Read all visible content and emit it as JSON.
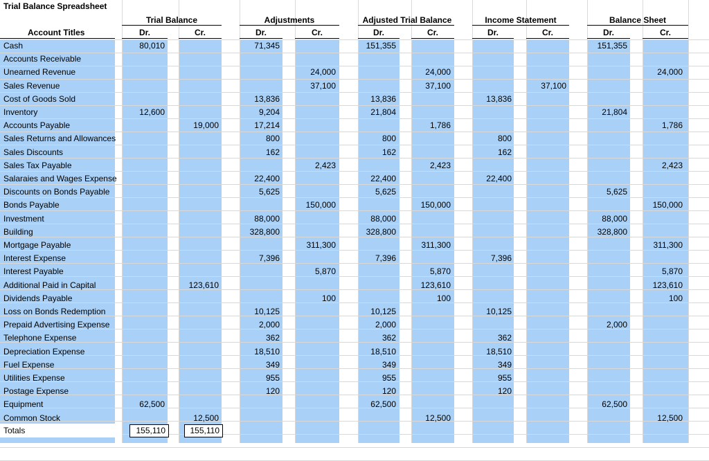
{
  "sheet": {
    "title": "Trial Balance Spreadsheet",
    "account_header": "Account Titles",
    "groups": [
      {
        "label": "Trial Balance",
        "dr": "Dr.",
        "cr": "Cr."
      },
      {
        "label": "Adjustments",
        "dr": "Dr.",
        "cr": "Cr."
      },
      {
        "label": "Adjusted Trial Balance",
        "dr": "Dr.",
        "cr": "Cr."
      },
      {
        "label": "Income Statement",
        "dr": "Dr.",
        "cr": "Cr."
      },
      {
        "label": "Balance Sheet",
        "dr": "Dr.",
        "cr": "Cr."
      }
    ],
    "rows": [
      {
        "account": "Cash",
        "tb_dr": "80,010",
        "tb_cr": "",
        "adj_dr": "71,345",
        "adj_cr": "",
        "atb_dr": "151,355",
        "atb_cr": "",
        "is_dr": "",
        "is_cr": "",
        "bs_dr": "151,355",
        "bs_cr": ""
      },
      {
        "account": "Accounts Receivable",
        "tb_dr": "",
        "tb_cr": "",
        "adj_dr": "",
        "adj_cr": "",
        "atb_dr": "",
        "atb_cr": "",
        "is_dr": "",
        "is_cr": "",
        "bs_dr": "",
        "bs_cr": ""
      },
      {
        "account": "Unearned Revenue",
        "tb_dr": "",
        "tb_cr": "",
        "adj_dr": "",
        "adj_cr": "24,000",
        "atb_dr": "",
        "atb_cr": "24,000",
        "is_dr": "",
        "is_cr": "",
        "bs_dr": "",
        "bs_cr": "24,000"
      },
      {
        "account": "Sales Revenue",
        "tb_dr": "",
        "tb_cr": "",
        "adj_dr": "",
        "adj_cr": "37,100",
        "atb_dr": "",
        "atb_cr": "37,100",
        "is_dr": "",
        "is_cr": "37,100",
        "bs_dr": "",
        "bs_cr": ""
      },
      {
        "account": "Cost of Goods Sold",
        "tb_dr": "",
        "tb_cr": "",
        "adj_dr": "13,836",
        "adj_cr": "",
        "atb_dr": "13,836",
        "atb_cr": "",
        "is_dr": "13,836",
        "is_cr": "",
        "bs_dr": "",
        "bs_cr": ""
      },
      {
        "account": "Inventory",
        "tb_dr": "12,600",
        "tb_cr": "",
        "adj_dr": "9,204",
        "adj_cr": "",
        "atb_dr": "21,804",
        "atb_cr": "",
        "is_dr": "",
        "is_cr": "",
        "bs_dr": "21,804",
        "bs_cr": ""
      },
      {
        "account": "Accounts Payable",
        "tb_dr": "",
        "tb_cr": "19,000",
        "adj_dr": "17,214",
        "adj_cr": "",
        "atb_dr": "",
        "atb_cr": "1,786",
        "is_dr": "",
        "is_cr": "",
        "bs_dr": "",
        "bs_cr": "1,786"
      },
      {
        "account": "Sales Returns and Allowances",
        "tb_dr": "",
        "tb_cr": "",
        "adj_dr": "800",
        "adj_cr": "",
        "atb_dr": "800",
        "atb_cr": "",
        "is_dr": "800",
        "is_cr": "",
        "bs_dr": "",
        "bs_cr": ""
      },
      {
        "account": "Sales Discounts",
        "tb_dr": "",
        "tb_cr": "",
        "adj_dr": "162",
        "adj_cr": "",
        "atb_dr": "162",
        "atb_cr": "",
        "is_dr": "162",
        "is_cr": "",
        "bs_dr": "",
        "bs_cr": ""
      },
      {
        "account": "Sales Tax Payable",
        "tb_dr": "",
        "tb_cr": "",
        "adj_dr": "",
        "adj_cr": "2,423",
        "atb_dr": "",
        "atb_cr": "2,423",
        "is_dr": "",
        "is_cr": "",
        "bs_dr": "",
        "bs_cr": "2,423"
      },
      {
        "account": "Salaraies and Wages Expense",
        "tb_dr": "",
        "tb_cr": "",
        "adj_dr": "22,400",
        "adj_cr": "",
        "atb_dr": "22,400",
        "atb_cr": "",
        "is_dr": "22,400",
        "is_cr": "",
        "bs_dr": "",
        "bs_cr": ""
      },
      {
        "account": "Discounts on Bonds Payable",
        "tb_dr": "",
        "tb_cr": "",
        "adj_dr": "5,625",
        "adj_cr": "",
        "atb_dr": "5,625",
        "atb_cr": "",
        "is_dr": "",
        "is_cr": "",
        "bs_dr": "5,625",
        "bs_cr": ""
      },
      {
        "account": "Bonds Payable",
        "tb_dr": "",
        "tb_cr": "",
        "adj_dr": "",
        "adj_cr": "150,000",
        "atb_dr": "",
        "atb_cr": "150,000",
        "is_dr": "",
        "is_cr": "",
        "bs_dr": "",
        "bs_cr": "150,000"
      },
      {
        "account": "Investment",
        "tb_dr": "",
        "tb_cr": "",
        "adj_dr": "88,000",
        "adj_cr": "",
        "atb_dr": "88,000",
        "atb_cr": "",
        "is_dr": "",
        "is_cr": "",
        "bs_dr": "88,000",
        "bs_cr": ""
      },
      {
        "account": "Building",
        "tb_dr": "",
        "tb_cr": "",
        "adj_dr": "328,800",
        "adj_cr": "",
        "atb_dr": "328,800",
        "atb_cr": "",
        "is_dr": "",
        "is_cr": "",
        "bs_dr": "328,800",
        "bs_cr": ""
      },
      {
        "account": "Mortgage Payable",
        "tb_dr": "",
        "tb_cr": "",
        "adj_dr": "",
        "adj_cr": "311,300",
        "atb_dr": "",
        "atb_cr": "311,300",
        "is_dr": "",
        "is_cr": "",
        "bs_dr": "",
        "bs_cr": "311,300"
      },
      {
        "account": "Interest Expense",
        "tb_dr": "",
        "tb_cr": "",
        "adj_dr": "7,396",
        "adj_cr": "",
        "atb_dr": "7,396",
        "atb_cr": "",
        "is_dr": "7,396",
        "is_cr": "",
        "bs_dr": "",
        "bs_cr": ""
      },
      {
        "account": "Interest Payable",
        "tb_dr": "",
        "tb_cr": "",
        "adj_dr": "",
        "adj_cr": "5,870",
        "atb_dr": "",
        "atb_cr": "5,870",
        "is_dr": "",
        "is_cr": "",
        "bs_dr": "",
        "bs_cr": "5,870"
      },
      {
        "account": "Additional Paid in Capital",
        "tb_dr": "",
        "tb_cr": "123,610",
        "adj_dr": "",
        "adj_cr": "",
        "atb_dr": "",
        "atb_cr": "123,610",
        "is_dr": "",
        "is_cr": "",
        "bs_dr": "",
        "bs_cr": "123,610"
      },
      {
        "account": "Dividends Payable",
        "tb_dr": "",
        "tb_cr": "",
        "adj_dr": "",
        "adj_cr": "100",
        "atb_dr": "",
        "atb_cr": "100",
        "is_dr": "",
        "is_cr": "",
        "bs_dr": "",
        "bs_cr": "100"
      },
      {
        "account": "Loss on Bonds Redemption",
        "tb_dr": "",
        "tb_cr": "",
        "adj_dr": "10,125",
        "adj_cr": "",
        "atb_dr": "10,125",
        "atb_cr": "",
        "is_dr": "10,125",
        "is_cr": "",
        "bs_dr": "",
        "bs_cr": ""
      },
      {
        "account": "Prepaid Advertising Expense",
        "tb_dr": "",
        "tb_cr": "",
        "adj_dr": "2,000",
        "adj_cr": "",
        "atb_dr": "2,000",
        "atb_cr": "",
        "is_dr": "",
        "is_cr": "",
        "bs_dr": "2,000",
        "bs_cr": ""
      },
      {
        "account": "Telephone Expense",
        "tb_dr": "",
        "tb_cr": "",
        "adj_dr": "362",
        "adj_cr": "",
        "atb_dr": "362",
        "atb_cr": "",
        "is_dr": "362",
        "is_cr": "",
        "bs_dr": "",
        "bs_cr": ""
      },
      {
        "account": "Depreciation Expense",
        "tb_dr": "",
        "tb_cr": "",
        "adj_dr": "18,510",
        "adj_cr": "",
        "atb_dr": "18,510",
        "atb_cr": "",
        "is_dr": "18,510",
        "is_cr": "",
        "bs_dr": "",
        "bs_cr": ""
      },
      {
        "account": "Fuel Expense",
        "tb_dr": "",
        "tb_cr": "",
        "adj_dr": "349",
        "adj_cr": "",
        "atb_dr": "349",
        "atb_cr": "",
        "is_dr": "349",
        "is_cr": "",
        "bs_dr": "",
        "bs_cr": ""
      },
      {
        "account": "Utilities Expense",
        "tb_dr": "",
        "tb_cr": "",
        "adj_dr": "955",
        "adj_cr": "",
        "atb_dr": "955",
        "atb_cr": "",
        "is_dr": "955",
        "is_cr": "",
        "bs_dr": "",
        "bs_cr": ""
      },
      {
        "account": "Postage Expense",
        "tb_dr": "",
        "tb_cr": "",
        "adj_dr": "120",
        "adj_cr": "",
        "atb_dr": "120",
        "atb_cr": "",
        "is_dr": "120",
        "is_cr": "",
        "bs_dr": "",
        "bs_cr": ""
      },
      {
        "account": "Equipment",
        "tb_dr": "62,500",
        "tb_cr": "",
        "adj_dr": "",
        "adj_cr": "",
        "atb_dr": "62,500",
        "atb_cr": "",
        "is_dr": "",
        "is_cr": "",
        "bs_dr": "62,500",
        "bs_cr": ""
      },
      {
        "account": "Common Stock",
        "tb_dr": "",
        "tb_cr": "12,500",
        "adj_dr": "",
        "adj_cr": "",
        "atb_dr": "",
        "atb_cr": "12,500",
        "is_dr": "",
        "is_cr": "",
        "bs_dr": "",
        "bs_cr": "12,500"
      }
    ],
    "totals": {
      "label": "Totals",
      "tb_dr": "155,110",
      "tb_cr": "155,110"
    }
  }
}
